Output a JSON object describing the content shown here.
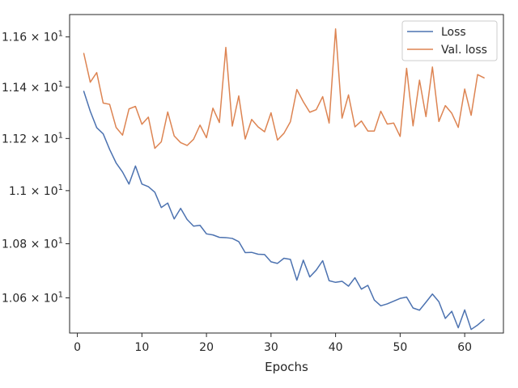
{
  "chart_data": {
    "type": "line",
    "title": "",
    "xlabel": "Epochs",
    "ylabel": "",
    "xlim": [
      -1.2,
      66.0
    ],
    "ylim": [
      10.472,
      11.69
    ],
    "yscale": "log",
    "grid": false,
    "legend_position": "top-right",
    "x_ticks": [
      {
        "value": 0,
        "label": "0"
      },
      {
        "value": 10,
        "label": "10"
      },
      {
        "value": 20,
        "label": "20"
      },
      {
        "value": 30,
        "label": "30"
      },
      {
        "value": 40,
        "label": "40"
      },
      {
        "value": 50,
        "label": "50"
      },
      {
        "value": 60,
        "label": "60"
      }
    ],
    "y_ticks": [
      {
        "value": 10.6,
        "mant": "1.06",
        "base": "10",
        "exp": "1"
      },
      {
        "value": 10.8,
        "mant": "1.08",
        "base": "10",
        "exp": "1"
      },
      {
        "value": 11.0,
        "mant": "1.1",
        "base": "10",
        "exp": "1"
      },
      {
        "value": 11.2,
        "mant": "1.12",
        "base": "10",
        "exp": "1"
      },
      {
        "value": 11.4,
        "mant": "1.14",
        "base": "10",
        "exp": "1"
      },
      {
        "value": 11.6,
        "mant": "1.16",
        "base": "10",
        "exp": "1"
      }
    ],
    "x": [
      1,
      2,
      3,
      4,
      5,
      6,
      7,
      8,
      9,
      10,
      11,
      12,
      13,
      14,
      15,
      16,
      17,
      18,
      19,
      20,
      21,
      22,
      23,
      24,
      25,
      26,
      27,
      28,
      29,
      30,
      31,
      32,
      33,
      34,
      35,
      36,
      37,
      38,
      39,
      40,
      41,
      42,
      43,
      44,
      45,
      46,
      47,
      48,
      49,
      50,
      51,
      52,
      53,
      54,
      55,
      56,
      57,
      58,
      59,
      60,
      61,
      62,
      63
    ],
    "series": [
      {
        "name": "Loss",
        "color": "#4c72b0",
        "values": [
          11.384,
          11.306,
          11.242,
          11.218,
          11.158,
          11.106,
          11.071,
          11.025,
          11.094,
          11.025,
          11.015,
          10.994,
          10.936,
          10.953,
          10.893,
          10.933,
          10.891,
          10.866,
          10.869,
          10.837,
          10.833,
          10.824,
          10.823,
          10.82,
          10.808,
          10.767,
          10.768,
          10.761,
          10.76,
          10.733,
          10.727,
          10.746,
          10.742,
          10.665,
          10.739,
          10.677,
          10.702,
          10.737,
          10.663,
          10.657,
          10.661,
          10.643,
          10.674,
          10.632,
          10.646,
          10.592,
          10.571,
          10.578,
          10.588,
          10.598,
          10.603,
          10.563,
          10.555,
          10.584,
          10.614,
          10.586,
          10.525,
          10.551,
          10.491,
          10.556,
          10.485,
          10.501,
          10.521
        ]
      },
      {
        "name": "Val. loss",
        "color": "#dd8452",
        "values": [
          11.534,
          11.42,
          11.458,
          11.338,
          11.333,
          11.243,
          11.213,
          11.315,
          11.325,
          11.255,
          11.283,
          11.162,
          11.187,
          11.303,
          11.21,
          11.184,
          11.173,
          11.197,
          11.252,
          11.203,
          11.318,
          11.262,
          11.558,
          11.248,
          11.366,
          11.198,
          11.274,
          11.245,
          11.226,
          11.3,
          11.194,
          11.22,
          11.265,
          11.391,
          11.343,
          11.302,
          11.312,
          11.363,
          11.26,
          11.632,
          11.279,
          11.37,
          11.245,
          11.268,
          11.229,
          11.229,
          11.306,
          11.256,
          11.26,
          11.208,
          11.475,
          11.249,
          11.428,
          11.285,
          11.48,
          11.266,
          11.328,
          11.298,
          11.243,
          11.393,
          11.29,
          11.45,
          11.437
        ]
      }
    ]
  }
}
